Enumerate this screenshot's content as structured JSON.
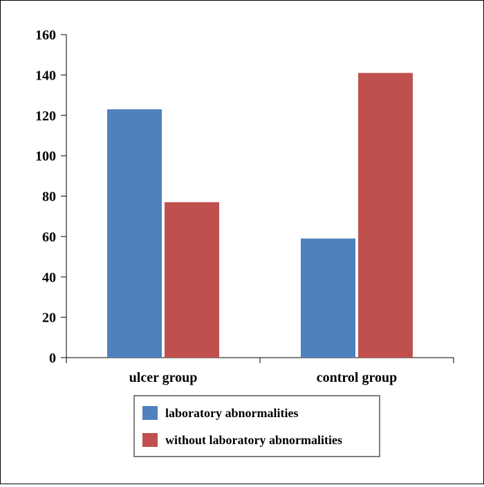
{
  "chart_data": {
    "type": "bar",
    "categories": [
      "ulcer group",
      "control group"
    ],
    "series": [
      {
        "name": "laboratory abnormalities",
        "values": [
          123,
          59
        ],
        "color": "#4f81bd"
      },
      {
        "name": "without laboratory abnormalities",
        "values": [
          77,
          141
        ],
        "color": "#c0504d"
      }
    ],
    "title": "",
    "xlabel": "",
    "ylabel": "",
    "ylim": [
      0,
      160
    ],
    "yticks": [
      0,
      20,
      40,
      60,
      80,
      100,
      120,
      140,
      160
    ],
    "grid": false,
    "legend_position": "bottom-center"
  }
}
